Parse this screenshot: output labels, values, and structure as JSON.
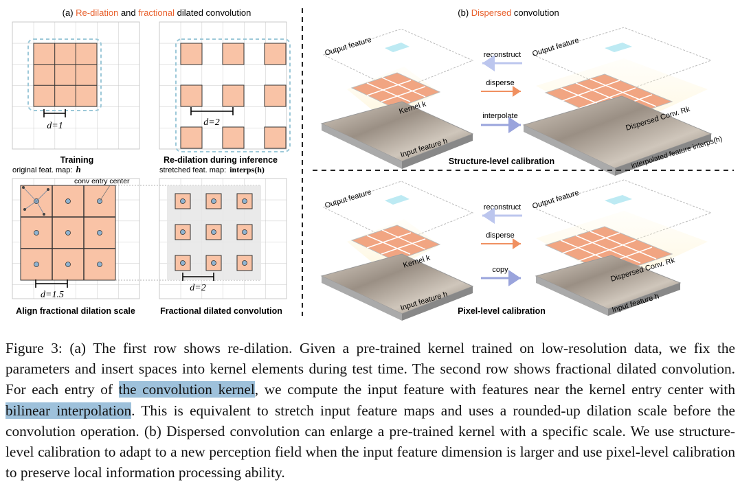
{
  "panel_a": {
    "title_prefix": "(a) ",
    "title_part1": "Re-dilation",
    "title_mid": " and ",
    "title_part2": "fractional",
    "title_suffix": " dilated convolution",
    "training_label": "Training",
    "redilation_label": "Re-dilation during inference",
    "orig_feat_label": "original feat. map:",
    "orig_feat_symbol": "h",
    "stretched_feat_label": "stretched feat. map:",
    "stretched_feat_symbol": "interps(h)",
    "conv_entry_center_label": "conv entry center",
    "d1_label": "d=1",
    "d2_label": "d=2",
    "d15_label": "d=1.5",
    "d2b_label": "d=2",
    "align_label": "Align fractional dilation scale",
    "fractional_label": "Fractional dilated convolution"
  },
  "panel_b": {
    "title_prefix": "(b) ",
    "title_part1": "Dispersed",
    "title_suffix": " convolution",
    "output_feature": "Output feature",
    "input_feature": "Input feature h",
    "kernel": "Kernel k",
    "dispersed_kernel": "Dispersed Conv. Rk",
    "interpolated_feature": "interpolated feature interps(h)",
    "reconstruct": "reconstruct",
    "disperse": "disperse",
    "interpolate": "interpolate",
    "copy": "copy",
    "structure_level": "Structure-level calibration",
    "pixel_level": "Pixel-level calibration"
  },
  "colors": {
    "accent_orange": "#e8602c",
    "kernel_fill": "#f9c3a6",
    "dashed_blue": "#9cc8d8",
    "highlight": "#9ec1db"
  },
  "caption": {
    "part1": "Figure 3: (a) The first row shows re-dilation. Given a pre-trained kernel trained on low-resolution data, we fix the parameters and insert spaces into kernel elements during test time. The second row shows fractional dilated convolution. For each entry of ",
    "highlight1": "the convolution kernel",
    "part2": ", we compute the input feature with features near the kernel entry center with ",
    "highlight2": "bilinear interpolation",
    "part3": ". This is equivalent to stretch input feature maps and uses a rounded-up dilation scale before the convolution operation. (b) Dispersed convolution can enlarge a pre-trained kernel with a specific scale. We use structure-level calibration to adapt to a new perception field when the input feature dimension is larger and use pixel-level calibration to preserve local information processing ability."
  }
}
